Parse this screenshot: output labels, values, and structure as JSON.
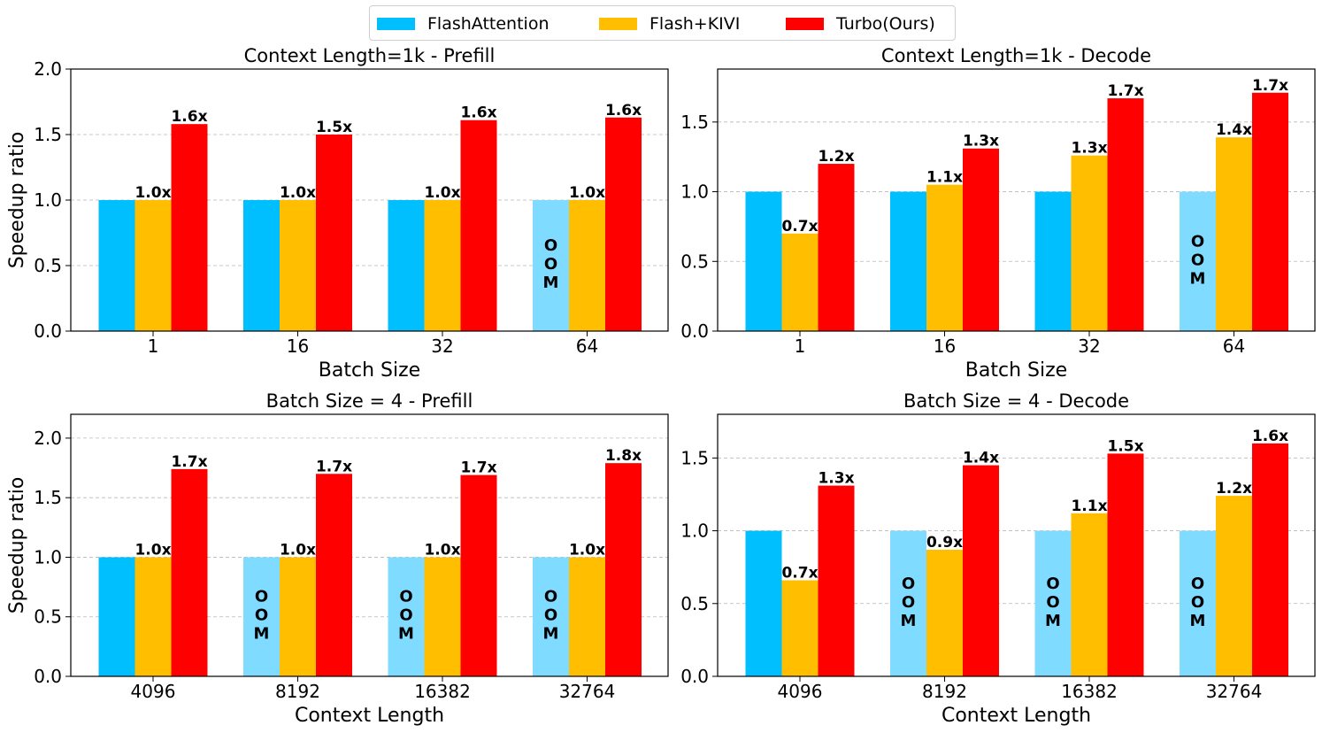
{
  "legend": [
    {
      "label": "FlashAttention",
      "color": "#00BFFF"
    },
    {
      "label": "Flash+KIVI",
      "color": "#FFBF00"
    },
    {
      "label": "Turbo(Ours)",
      "color": "#FF0000"
    }
  ],
  "oom_color": "#7FDBFF",
  "oom_label": [
    "O",
    "O",
    "M"
  ],
  "chart_data": [
    {
      "type": "bar",
      "title": "Context Length=1k - Prefill",
      "xlabel": "Batch Size",
      "ylabel": "Speedup ratio",
      "categories": [
        "1",
        "16",
        "32",
        "64"
      ],
      "ylim": [
        0,
        2.0
      ],
      "yticks": [
        "0.0",
        "0.5",
        "1.0",
        "1.5",
        "2.0"
      ],
      "series": [
        {
          "name": "FlashAttention",
          "values": [
            1.0,
            1.0,
            1.0,
            1.0
          ],
          "oom": [
            false,
            false,
            false,
            true
          ]
        },
        {
          "name": "Flash+KIVI",
          "values": [
            1.0,
            1.0,
            1.0,
            1.0
          ],
          "labels": [
            "1.0x",
            "1.0x",
            "1.0x",
            "1.0x"
          ]
        },
        {
          "name": "Turbo(Ours)",
          "values": [
            1.58,
            1.5,
            1.61,
            1.63
          ],
          "labels": [
            "1.6x",
            "1.5x",
            "1.6x",
            "1.6x"
          ]
        }
      ]
    },
    {
      "type": "bar",
      "title": "Context Length=1k - Decode",
      "xlabel": "Batch Size",
      "ylabel": "",
      "categories": [
        "1",
        "16",
        "32",
        "64"
      ],
      "ylim": [
        0,
        1.88
      ],
      "yticks": [
        "0.0",
        "0.5",
        "1.0",
        "1.5"
      ],
      "series": [
        {
          "name": "FlashAttention",
          "values": [
            1.0,
            1.0,
            1.0,
            1.0
          ],
          "oom": [
            false,
            false,
            false,
            true
          ]
        },
        {
          "name": "Flash+KIVI",
          "values": [
            0.7,
            1.05,
            1.26,
            1.39
          ],
          "labels": [
            "0.7x",
            "1.1x",
            "1.3x",
            "1.4x"
          ]
        },
        {
          "name": "Turbo(Ours)",
          "values": [
            1.2,
            1.31,
            1.67,
            1.71
          ],
          "labels": [
            "1.2x",
            "1.3x",
            "1.7x",
            "1.7x"
          ]
        }
      ]
    },
    {
      "type": "bar",
      "title": "Batch Size = 4 - Prefill",
      "xlabel": "Context Length",
      "ylabel": "Speedup ratio",
      "categories": [
        "4096",
        "8192",
        "16382",
        "32764"
      ],
      "ylim": [
        0,
        2.2
      ],
      "yticks": [
        "0.0",
        "0.5",
        "1.0",
        "1.5",
        "2.0"
      ],
      "series": [
        {
          "name": "FlashAttention",
          "values": [
            1.0,
            1.0,
            1.0,
            1.0
          ],
          "oom": [
            false,
            true,
            true,
            true
          ]
        },
        {
          "name": "Flash+KIVI",
          "values": [
            1.0,
            1.0,
            1.0,
            1.0
          ],
          "labels": [
            "1.0x",
            "1.0x",
            "1.0x",
            "1.0x"
          ]
        },
        {
          "name": "Turbo(Ours)",
          "values": [
            1.74,
            1.7,
            1.69,
            1.79
          ],
          "labels": [
            "1.7x",
            "1.7x",
            "1.7x",
            "1.8x"
          ]
        }
      ]
    },
    {
      "type": "bar",
      "title": "Batch Size = 4 - Decode",
      "xlabel": "Context Length",
      "ylabel": "",
      "categories": [
        "4096",
        "8192",
        "16382",
        "32764"
      ],
      "ylim": [
        0,
        1.8
      ],
      "yticks": [
        "0.0",
        "0.5",
        "1.0",
        "1.5"
      ],
      "series": [
        {
          "name": "FlashAttention",
          "values": [
            1.0,
            1.0,
            1.0,
            1.0
          ],
          "oom": [
            false,
            true,
            true,
            true
          ]
        },
        {
          "name": "Flash+KIVI",
          "values": [
            0.66,
            0.87,
            1.12,
            1.24
          ],
          "labels": [
            "0.7x",
            "0.9x",
            "1.1x",
            "1.2x"
          ]
        },
        {
          "name": "Turbo(Ours)",
          "values": [
            1.31,
            1.45,
            1.53,
            1.6
          ],
          "labels": [
            "1.3x",
            "1.4x",
            "1.5x",
            "1.6x"
          ]
        }
      ]
    }
  ]
}
